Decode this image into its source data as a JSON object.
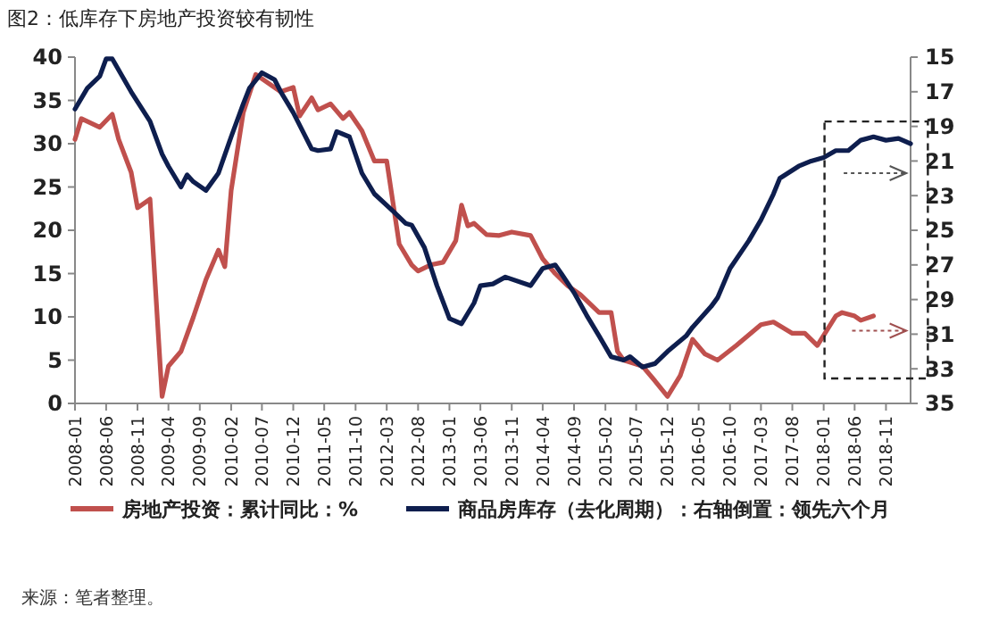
{
  "chart_data": {
    "type": "line",
    "title": "图2：低库存下房地产投资较有韧性",
    "xlim": [
      "2008-01",
      "2019-03"
    ],
    "xticks": [
      "2008-01",
      "2008-06",
      "2008-11",
      "2009-04",
      "2009-09",
      "2010-02",
      "2010-07",
      "2010-12",
      "2011-05",
      "2011-10",
      "2012-03",
      "2012-08",
      "2013-01",
      "2013-06",
      "2013-11",
      "2014-04",
      "2014-09",
      "2015-02",
      "2015-07",
      "2015-12",
      "2016-05",
      "2016-10",
      "2017-03",
      "2017-08",
      "2018-01",
      "2018-06",
      "2018-11"
    ],
    "ylim": [
      0,
      40
    ],
    "yticks": [
      0,
      5,
      10,
      15,
      20,
      25,
      30,
      35,
      40
    ],
    "y2lim": [
      35,
      15
    ],
    "y2ticks": [
      35,
      33,
      31,
      29,
      27,
      25,
      23,
      21,
      19,
      17,
      15
    ],
    "legend": "bottom",
    "grid": false,
    "marker": "none",
    "line_style": "solid",
    "series": [
      {
        "name": "房地产投资：累计同比：%",
        "color": "#c0504d",
        "x": [
          "2008-01",
          "2008-02",
          "2008-05",
          "2008-07",
          "2008-08",
          "2008-10",
          "2008-11",
          "2009-01",
          "2009-03",
          "2009-04",
          "2009-06",
          "2009-08",
          "2009-10",
          "2009-12",
          "2010-01",
          "2010-02",
          "2010-04",
          "2010-06",
          "2010-08",
          "2010-10",
          "2010-12",
          "2011-01",
          "2011-03",
          "2011-04",
          "2011-06",
          "2011-08",
          "2011-09",
          "2011-11",
          "2012-01",
          "2012-03",
          "2012-05",
          "2012-07",
          "2012-08",
          "2012-10",
          "2012-12",
          "2013-02",
          "2013-03",
          "2013-04",
          "2013-05",
          "2013-07",
          "2013-09",
          "2013-11",
          "2014-02",
          "2014-04",
          "2014-06",
          "2014-08",
          "2014-10",
          "2015-01",
          "2015-03",
          "2015-04",
          "2015-05",
          "2015-08",
          "2015-10",
          "2015-12",
          "2016-02",
          "2016-04",
          "2016-06",
          "2016-08",
          "2016-11",
          "2017-03",
          "2017-05",
          "2017-08",
          "2017-10",
          "2017-12",
          "2018-03",
          "2018-04",
          "2018-06",
          "2018-07",
          "2018-09"
        ],
        "values": [
          30.5,
          32.9,
          31.9,
          33.4,
          30.5,
          26.7,
          22.6,
          23.6,
          0.8,
          4.3,
          6,
          10,
          14.3,
          17.7,
          15.8,
          24.6,
          33.6,
          38,
          37,
          36,
          36.5,
          33.2,
          35.3,
          33.9,
          34.6,
          32.9,
          33.6,
          31.5,
          28,
          28,
          18.4,
          16,
          15.3,
          16,
          16.3,
          18.8,
          22.9,
          20.5,
          20.8,
          19.5,
          19.4,
          19.8,
          19.4,
          16.7,
          15,
          13.6,
          12.6,
          10.5,
          10.5,
          6,
          5,
          4.3,
          2.6,
          0.8,
          3.2,
          7.4,
          5.7,
          5,
          6.7,
          9.1,
          9.4,
          8.1,
          8.1,
          6.7,
          10.1,
          10.5,
          10.1,
          9.6,
          10.1
        ]
      },
      {
        "name": "商品房库存（去化周期）：右轴倒置：领先六个月",
        "color": "#0e1e4e",
        "axis": "y2",
        "x": [
          "2008-01",
          "2008-03",
          "2008-05",
          "2008-06",
          "2008-07",
          "2008-10",
          "2009-01",
          "2009-03",
          "2009-04",
          "2009-06",
          "2009-07",
          "2009-08",
          "2009-10",
          "2009-12",
          "2010-02",
          "2010-04",
          "2010-05",
          "2010-07",
          "2010-09",
          "2010-10",
          "2010-12",
          "2011-03",
          "2011-04",
          "2011-06",
          "2011-07",
          "2011-09",
          "2011-11",
          "2012-01",
          "2012-04",
          "2012-06",
          "2012-07",
          "2012-09",
          "2012-11",
          "2013-01",
          "2013-03",
          "2013-05",
          "2013-06",
          "2013-08",
          "2013-10",
          "2014-02",
          "2014-04",
          "2014-06",
          "2014-07",
          "2014-09",
          "2014-11",
          "2015-01",
          "2015-03",
          "2015-05",
          "2015-06",
          "2015-08",
          "2015-10",
          "2015-12",
          "2016-03",
          "2016-04",
          "2016-07",
          "2016-08",
          "2016-10",
          "2017-01",
          "2017-03",
          "2017-05",
          "2017-06",
          "2017-09",
          "2017-11",
          "2018-01",
          "2018-03",
          "2018-05",
          "2018-07",
          "2018-09",
          "2018-11",
          "2019-01",
          "2019-03"
        ],
        "values": [
          18,
          16.8,
          16.1,
          15.1,
          15.1,
          17,
          18.7,
          20.6,
          21.3,
          22.5,
          21.8,
          22.2,
          22.7,
          21.7,
          19.6,
          17.7,
          16.8,
          15.9,
          16.3,
          17,
          18.2,
          20.3,
          20.4,
          20.3,
          19.3,
          19.6,
          21.7,
          22.9,
          23.9,
          24.6,
          24.7,
          26,
          28.2,
          30.1,
          30.4,
          29.2,
          28.2,
          28.1,
          27.7,
          28.2,
          27.2,
          27,
          27.5,
          28.6,
          29.9,
          31.1,
          32.3,
          32.5,
          32.3,
          32.9,
          32.7,
          32,
          31.1,
          30.6,
          29.4,
          28.9,
          27.2,
          25.6,
          24.4,
          22.9,
          22,
          21.3,
          21,
          20.8,
          20.4,
          20.4,
          19.8,
          19.6,
          19.8,
          19.7,
          20
        ]
      }
    ],
    "annotations": [
      "来源：笔者整理。"
    ]
  }
}
